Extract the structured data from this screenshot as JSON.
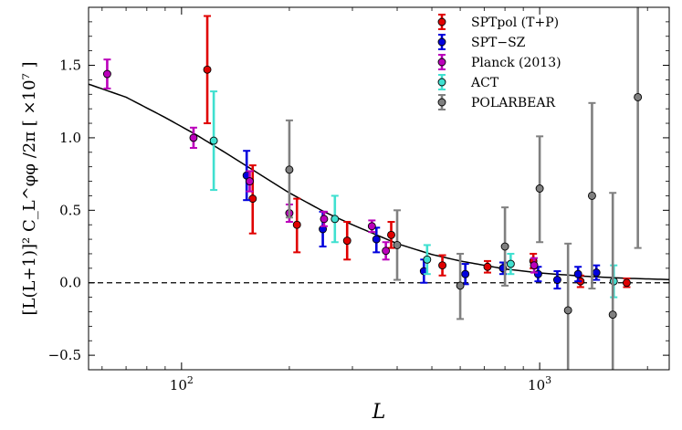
{
  "chart_data": {
    "type": "scatter",
    "title": "",
    "xlabel": "L",
    "ylabel": "[L(L+1)]² C_L^φφ /2π [ ×10⁷ ]",
    "xscale": "log",
    "xlim": [
      55,
      2300
    ],
    "ylim": [
      -0.6,
      1.9
    ],
    "grid": false,
    "legend_position": "top-right",
    "x_ticks": [
      {
        "v": 100,
        "b": "10",
        "e": "2"
      },
      {
        "v": 1000,
        "b": "10",
        "e": "3"
      }
    ],
    "y_ticks": [
      {
        "v": -0.5,
        "label": "−0.5"
      },
      {
        "v": 0.0,
        "label": "0.0"
      },
      {
        "v": 0.5,
        "label": "0.5"
      },
      {
        "v": 1.0,
        "label": "1.0"
      },
      {
        "v": 1.5,
        "label": "1.5"
      }
    ],
    "reference_line": {
      "y": 0.0,
      "style": "dashed"
    },
    "theory_curve": {
      "x": [
        55,
        70,
        90,
        110,
        130,
        160,
        200,
        250,
        300,
        400,
        500,
        600,
        800,
        1000,
        1300,
        1700,
        2300
      ],
      "y": [
        1.37,
        1.28,
        1.14,
        1.02,
        0.91,
        0.77,
        0.62,
        0.49,
        0.4,
        0.27,
        0.195,
        0.15,
        0.095,
        0.068,
        0.046,
        0.032,
        0.022
      ]
    },
    "series": [
      {
        "name": "SPTpol (T+P)",
        "color": "#e00000",
        "points": [
          {
            "x": 118,
            "y": 1.47,
            "lo": 1.1,
            "hi": 1.84
          },
          {
            "x": 158,
            "y": 0.58,
            "lo": 0.34,
            "hi": 0.81
          },
          {
            "x": 210,
            "y": 0.4,
            "lo": 0.21,
            "hi": 0.58
          },
          {
            "x": 290,
            "y": 0.29,
            "lo": 0.16,
            "hi": 0.42
          },
          {
            "x": 385,
            "y": 0.33,
            "lo": 0.24,
            "hi": 0.42
          },
          {
            "x": 535,
            "y": 0.12,
            "lo": 0.05,
            "hi": 0.19
          },
          {
            "x": 715,
            "y": 0.11,
            "lo": 0.07,
            "hi": 0.15
          },
          {
            "x": 960,
            "y": 0.15,
            "lo": 0.1,
            "hi": 0.2
          },
          {
            "x": 1300,
            "y": 0.01,
            "lo": -0.03,
            "hi": 0.05
          },
          {
            "x": 1750,
            "y": 0.0,
            "lo": -0.03,
            "hi": 0.03
          }
        ]
      },
      {
        "name": "SPT−SZ",
        "color": "#0000dd",
        "points": [
          {
            "x": 152,
            "y": 0.74,
            "lo": 0.57,
            "hi": 0.91
          },
          {
            "x": 248,
            "y": 0.37,
            "lo": 0.25,
            "hi": 0.49
          },
          {
            "x": 350,
            "y": 0.3,
            "lo": 0.21,
            "hi": 0.38
          },
          {
            "x": 475,
            "y": 0.08,
            "lo": 0.0,
            "hi": 0.16
          },
          {
            "x": 620,
            "y": 0.06,
            "lo": -0.01,
            "hi": 0.13
          },
          {
            "x": 790,
            "y": 0.1,
            "lo": 0.06,
            "hi": 0.14
          },
          {
            "x": 990,
            "y": 0.06,
            "lo": 0.01,
            "hi": 0.11
          },
          {
            "x": 1120,
            "y": 0.02,
            "lo": -0.04,
            "hi": 0.08
          },
          {
            "x": 1280,
            "y": 0.06,
            "lo": 0.01,
            "hi": 0.11
          },
          {
            "x": 1440,
            "y": 0.07,
            "lo": 0.02,
            "hi": 0.12
          }
        ]
      },
      {
        "name": "Planck (2013)",
        "color": "#bb00bb",
        "points": [
          {
            "x": 62,
            "y": 1.44,
            "lo": 1.34,
            "hi": 1.54
          },
          {
            "x": 108,
            "y": 1.0,
            "lo": 0.93,
            "hi": 1.07
          },
          {
            "x": 155,
            "y": 0.7,
            "lo": 0.63,
            "hi": 0.77
          },
          {
            "x": 200,
            "y": 0.48,
            "lo": 0.42,
            "hi": 0.54
          },
          {
            "x": 250,
            "y": 0.44,
            "lo": 0.39,
            "hi": 0.49
          },
          {
            "x": 340,
            "y": 0.39,
            "lo": 0.35,
            "hi": 0.43
          },
          {
            "x": 372,
            "y": 0.22,
            "lo": 0.16,
            "hi": 0.28
          },
          {
            "x": 965,
            "y": 0.12,
            "lo": 0.07,
            "hi": 0.17
          }
        ]
      },
      {
        "name": "ACT",
        "color": "#40e0d0",
        "points": [
          {
            "x": 123,
            "y": 0.98,
            "lo": 0.64,
            "hi": 1.32
          },
          {
            "x": 268,
            "y": 0.44,
            "lo": 0.28,
            "hi": 0.6
          },
          {
            "x": 485,
            "y": 0.16,
            "lo": 0.06,
            "hi": 0.26
          },
          {
            "x": 830,
            "y": 0.13,
            "lo": 0.06,
            "hi": 0.2
          },
          {
            "x": 1610,
            "y": 0.01,
            "lo": -0.1,
            "hi": 0.12
          }
        ]
      },
      {
        "name": "POLARBEAR",
        "color": "#808080",
        "points": [
          {
            "x": 200,
            "y": 0.78,
            "lo": 0.45,
            "hi": 1.12
          },
          {
            "x": 400,
            "y": 0.26,
            "lo": 0.02,
            "hi": 0.5
          },
          {
            "x": 600,
            "y": -0.02,
            "lo": -0.25,
            "hi": 0.2
          },
          {
            "x": 800,
            "y": 0.25,
            "lo": -0.02,
            "hi": 0.52
          },
          {
            "x": 1000,
            "y": 0.65,
            "lo": 0.28,
            "hi": 1.01
          },
          {
            "x": 1200,
            "y": -0.19,
            "lo": -0.65,
            "hi": 0.27
          },
          {
            "x": 1400,
            "y": 0.6,
            "lo": -0.04,
            "hi": 1.24
          },
          {
            "x": 1600,
            "y": -0.22,
            "lo": -1.0,
            "hi": 0.62
          },
          {
            "x": 1880,
            "y": 1.28,
            "lo": 0.24,
            "hi": 2.2
          }
        ]
      }
    ]
  }
}
